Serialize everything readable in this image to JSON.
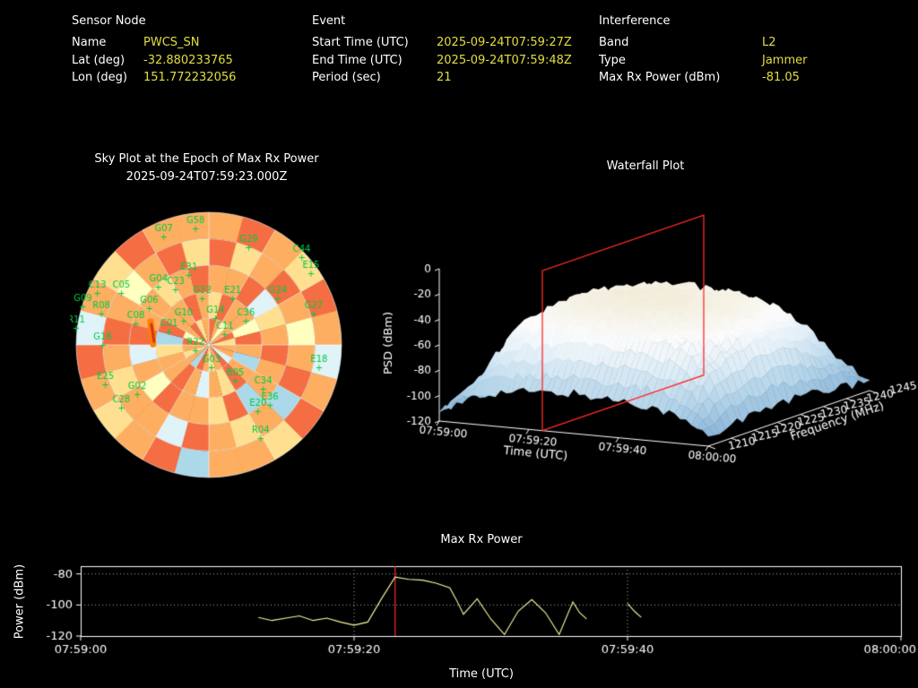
{
  "colors": {
    "background": "#000000",
    "text": "#ffffff",
    "value_text": "#e3de3f",
    "satellite_label": "#00cc44",
    "event_marker": "#ff2a2a",
    "power_line": "#fbf7a0"
  },
  "header": {
    "sensor_node": {
      "title": "Sensor Node",
      "rows": [
        {
          "label": "Name",
          "value": "PWCS_SN"
        },
        {
          "label": "Lat (deg)",
          "value": "-32.880233765"
        },
        {
          "label": "Lon (deg)",
          "value": "151.772232056"
        }
      ]
    },
    "event": {
      "title": "Event",
      "rows": [
        {
          "label": "Start Time (UTC)",
          "value": "2025-09-24T07:59:27Z"
        },
        {
          "label": "End Time (UTC)",
          "value": "2025-09-24T07:59:48Z"
        },
        {
          "label": "Period (sec)",
          "value": "21"
        }
      ]
    },
    "interference": {
      "title": "Interference",
      "rows": [
        {
          "label": "Band",
          "value": "L2"
        },
        {
          "label": "Type",
          "value": "Jammer"
        },
        {
          "label": "Max Rx Power (dBm)",
          "value": "-81.05"
        }
      ]
    }
  },
  "chart_data": [
    {
      "type": "heatmap",
      "name": "sky-plot",
      "projection": "polar",
      "title": "Sky Plot at the Epoch of Max Rx Power",
      "subtitle": "2025-09-24T07:59:23.000Z",
      "palette": [
        "#d73027",
        "#f46d43",
        "#fdae61",
        "#fee090",
        "#ffffbf",
        "#e0f3f8",
        "#abd9e9",
        "#74add1"
      ],
      "cells": [
        [
          2,
          1,
          2,
          3,
          1,
          2,
          5,
          2,
          1,
          3,
          2,
          2,
          6,
          1,
          2,
          3,
          2,
          1,
          5,
          2,
          3,
          1,
          2,
          2
        ],
        [
          1,
          3,
          2,
          1,
          2,
          4,
          2,
          1,
          6,
          2,
          3,
          2,
          1,
          5,
          2,
          2,
          3,
          2,
          1,
          2,
          4,
          2,
          1,
          3
        ],
        [
          2,
          2,
          1,
          5,
          3,
          2,
          1,
          2,
          2,
          6,
          1,
          3,
          2,
          2,
          1,
          4,
          2,
          5,
          1,
          2,
          2,
          3,
          2,
          1
        ],
        [
          3,
          1,
          2,
          2,
          4,
          1,
          2,
          6,
          2,
          1,
          3,
          2,
          5,
          2,
          1,
          2,
          2,
          3,
          6,
          1,
          2,
          2,
          1,
          2
        ],
        [
          1,
          2,
          4,
          2,
          1,
          3,
          2,
          2,
          5,
          1,
          2,
          3,
          2,
          1,
          6,
          2,
          3,
          2,
          1,
          4,
          2,
          1,
          3,
          2
        ]
      ],
      "grid_color": "#ffffff",
      "marker_color": "#00cc44",
      "streak": {
        "x": -0.44,
        "y": -0.09,
        "length": 0.17,
        "color": "#ff7f00"
      },
      "satellites": [
        {
          "id": "G58",
          "x": -0.1,
          "y": -0.9
        },
        {
          "id": "G07",
          "x": -0.34,
          "y": -0.84
        },
        {
          "id": "G29",
          "x": 0.3,
          "y": -0.76
        },
        {
          "id": "C44",
          "x": 0.7,
          "y": -0.68
        },
        {
          "id": "E15",
          "x": 0.77,
          "y": -0.56
        },
        {
          "id": "C13",
          "x": -0.84,
          "y": -0.41
        },
        {
          "id": "C05",
          "x": -0.66,
          "y": -0.41
        },
        {
          "id": "G09",
          "x": -0.95,
          "y": -0.31
        },
        {
          "id": "R08",
          "x": -0.81,
          "y": -0.26
        },
        {
          "id": "R11",
          "x": -1.0,
          "y": -0.15
        },
        {
          "id": "G16",
          "x": -0.8,
          "y": -0.02
        },
        {
          "id": "G27",
          "x": 0.79,
          "y": -0.26
        },
        {
          "id": "E18",
          "x": 0.83,
          "y": 0.15
        },
        {
          "id": "E25",
          "x": -0.78,
          "y": 0.28
        },
        {
          "id": "G02",
          "x": -0.54,
          "y": 0.35
        },
        {
          "id": "C28",
          "x": -0.66,
          "y": 0.45
        },
        {
          "id": "C34",
          "x": 0.41,
          "y": 0.31
        },
        {
          "id": "E36",
          "x": 0.46,
          "y": 0.43
        },
        {
          "id": "B05",
          "x": 0.2,
          "y": 0.25
        },
        {
          "id": "G03",
          "x": 0.02,
          "y": 0.15
        },
        {
          "id": "E20",
          "x": 0.37,
          "y": 0.48
        },
        {
          "id": "R04",
          "x": 0.39,
          "y": 0.68
        },
        {
          "id": "G10",
          "x": -0.19,
          "y": -0.2
        },
        {
          "id": "C11",
          "x": 0.12,
          "y": -0.1
        },
        {
          "id": "G32",
          "x": -0.05,
          "y": -0.37
        },
        {
          "id": "E21",
          "x": 0.18,
          "y": -0.37
        },
        {
          "id": "C23",
          "x": -0.25,
          "y": -0.44
        },
        {
          "id": "G06",
          "x": -0.45,
          "y": -0.3
        },
        {
          "id": "C08",
          "x": -0.55,
          "y": -0.18
        },
        {
          "id": "G24",
          "x": 0.52,
          "y": -0.37
        },
        {
          "id": "C01",
          "x": -0.3,
          "y": -0.12
        },
        {
          "id": "R22",
          "x": -0.1,
          "y": 0.02
        },
        {
          "id": "G14",
          "x": 0.05,
          "y": -0.22
        },
        {
          "id": "E31",
          "x": -0.15,
          "y": -0.55
        },
        {
          "id": "C36",
          "x": 0.28,
          "y": -0.2
        },
        {
          "id": "G04",
          "x": -0.38,
          "y": -0.46
        }
      ]
    },
    {
      "type": "heatmap",
      "name": "waterfall-3d",
      "title": "Waterfall Plot",
      "xlabel": "Time (UTC)",
      "ylabel": "PSD (dBm)",
      "zlabel": "Frequency (MHz)",
      "x_ticks": [
        "07:59:00",
        "07:59:20",
        "07:59:40",
        "08:00:00"
      ],
      "y_ticks": [
        0,
        -20,
        -40,
        -60,
        -80,
        -100,
        -120
      ],
      "z_ticks": [
        1210,
        1215,
        1220,
        1225,
        1230,
        1235,
        1240,
        1245
      ],
      "ylim": [
        -120,
        0
      ],
      "time_range_sec": [
        0,
        60
      ],
      "freq_range_mhz": [
        1210,
        1245
      ],
      "epoch_sec": 23,
      "plane_color": "#ff2a2a",
      "grid_times_sec": [
        0,
        5,
        10,
        15,
        20,
        25,
        30,
        35,
        40,
        45,
        50,
        55,
        60
      ],
      "grid_freqs_mhz": [
        1210,
        1215,
        1220,
        1225,
        1230,
        1235,
        1240,
        1245
      ],
      "psd_grid": [
        [
          -112,
          -110,
          -111,
          -109,
          -110,
          -111,
          -110,
          -112
        ],
        [
          -100,
          -85,
          -75,
          -70,
          -72,
          -78,
          -88,
          -102
        ],
        [
          -95,
          -60,
          -48,
          -45,
          -46,
          -50,
          -70,
          -98
        ],
        [
          -92,
          -52,
          -40,
          -36,
          -38,
          -42,
          -60,
          -95
        ],
        [
          -90,
          -48,
          -36,
          -32,
          -34,
          -38,
          -55,
          -92
        ],
        [
          -90,
          -46,
          -34,
          -30,
          -32,
          -36,
          -52,
          -90
        ],
        [
          -88,
          -45,
          -33,
          -30,
          -31,
          -35,
          -50,
          -90
        ],
        [
          -90,
          -46,
          -34,
          -31,
          -33,
          -36,
          -52,
          -91
        ],
        [
          -90,
          -48,
          -36,
          -33,
          -34,
          -38,
          -54,
          -92
        ],
        [
          -92,
          -50,
          -38,
          -35,
          -36,
          -40,
          -58,
          -94
        ],
        [
          -95,
          -55,
          -44,
          -40,
          -42,
          -46,
          -65,
          -96
        ],
        [
          -102,
          -75,
          -62,
          -58,
          -60,
          -68,
          -80,
          -103
        ],
        [
          -112,
          -108,
          -106,
          -105,
          -106,
          -108,
          -110,
          -112
        ]
      ]
    },
    {
      "type": "line",
      "name": "max-rx-power",
      "title": "Max Rx Power",
      "xlabel": "Time (UTC)",
      "ylabel": "Power (dBm)",
      "x_ticks": [
        "07:59:00",
        "07:59:20",
        "07:59:40",
        "08:00:00"
      ],
      "x_tick_sec": [
        0,
        20,
        40,
        60
      ],
      "y_ticks": [
        -80,
        -100,
        -120
      ],
      "ylim": [
        -120,
        -75
      ],
      "xlim_sec": [
        0,
        60
      ],
      "event_sec": 23,
      "event_line_color": "#ff2a2a",
      "line_color": "#fbf7a0",
      "grid_sec": [
        20,
        40
      ],
      "grid_dbm": [
        -80,
        -100
      ],
      "points": [
        [
          13,
          -108
        ],
        [
          14,
          -110
        ],
        [
          15,
          -108.5
        ],
        [
          16,
          -107
        ],
        [
          17,
          -110
        ],
        [
          18,
          -108.5
        ],
        [
          19,
          -111
        ],
        [
          20,
          -113
        ],
        [
          21,
          -111
        ],
        [
          22,
          -96
        ],
        [
          23,
          -82
        ],
        [
          24,
          -83.5
        ],
        [
          25,
          -84
        ],
        [
          26,
          -86
        ],
        [
          27,
          -89
        ],
        [
          27.5,
          -97
        ],
        [
          28,
          -106
        ],
        [
          29,
          -96
        ],
        [
          30,
          -109
        ],
        [
          31,
          -119
        ],
        [
          32,
          -104
        ],
        [
          33,
          -96.5
        ],
        [
          34,
          -105
        ],
        [
          35,
          -119
        ],
        [
          36,
          -98
        ],
        [
          36.5,
          -105
        ],
        [
          37,
          -109
        ],
        null,
        [
          37.8,
          -110
        ],
        null,
        [
          40,
          -99
        ],
        [
          40.5,
          -104
        ],
        [
          41,
          -108
        ],
        null,
        [
          43,
          -110
        ]
      ]
    }
  ]
}
